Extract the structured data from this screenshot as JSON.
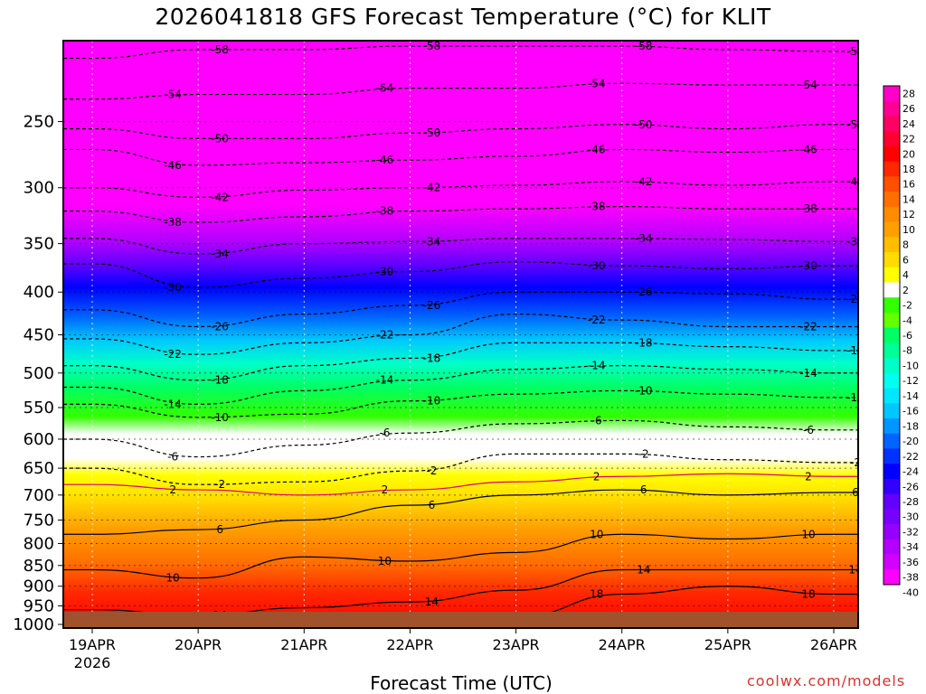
{
  "chart_data": {
    "type": "heatmap",
    "title": "2026041818 GFS Forecast Temperature (°C) for KLIT",
    "xlabel": "Forecast Time (UTC)",
    "x_ticks": [
      "19APR",
      "20APR",
      "21APR",
      "22APR",
      "23APR",
      "24APR",
      "25APR",
      "26APR"
    ],
    "x_tick_sublabel": "2026",
    "y_ticks": [
      250,
      300,
      350,
      400,
      450,
      500,
      550,
      600,
      650,
      700,
      750,
      800,
      850,
      900,
      950,
      1000
    ],
    "ylim": [
      1010,
      200
    ],
    "y_scale": "log pressure (hPa), inverted",
    "grid": "dotted",
    "colorbar": {
      "position": "right",
      "ticks": [
        28,
        26,
        24,
        22,
        20,
        18,
        16,
        14,
        12,
        10,
        8,
        6,
        4,
        2,
        -2,
        -4,
        -6,
        -8,
        -10,
        -12,
        -14,
        -16,
        -18,
        -20,
        -22,
        -24,
        -26,
        -28,
        -30,
        -32,
        -34,
        -36,
        -38,
        -40
      ],
      "colors": [
        "#ff00c8",
        "#ff0096",
        "#ff0064",
        "#ff0032",
        "#ff0000",
        "#ff2800",
        "#ff5000",
        "#ff6e00",
        "#ff8c00",
        "#ffa000",
        "#ffbe00",
        "#ffdc00",
        "#ffff00",
        "#ffffff",
        "#32ff00",
        "#64ff00",
        "#00ff64",
        "#00ff96",
        "#00ffc8",
        "#00fff0",
        "#00e6ff",
        "#00c8ff",
        "#0096ff",
        "#0064ff",
        "#0032ff",
        "#0000ff",
        "#3200ff",
        "#6400ff",
        "#7800ff",
        "#9600ff",
        "#b400ff",
        "#d200ff",
        "#ff00ff"
      ]
    },
    "series": [
      {
        "name": "-58",
        "pressure": [
          210,
          205,
          205,
          203,
          203,
          203,
          205,
          206
        ]
      },
      {
        "name": "-54",
        "pressure": [
          235,
          232,
          232,
          228,
          228,
          225,
          226,
          226
        ]
      },
      {
        "name": "-50",
        "pressure": [
          255,
          262,
          262,
          258,
          255,
          252,
          255,
          252
        ]
      },
      {
        "name": "-46",
        "pressure": [
          270,
          282,
          280,
          278,
          275,
          270,
          272,
          270
        ]
      },
      {
        "name": "-42",
        "pressure": [
          300,
          308,
          302,
          300,
          298,
          295,
          298,
          295
        ]
      },
      {
        "name": "-38",
        "pressure": [
          320,
          330,
          325,
          320,
          318,
          316,
          318,
          318
        ]
      },
      {
        "name": "-34",
        "pressure": [
          345,
          360,
          350,
          348,
          345,
          345,
          346,
          348
        ]
      },
      {
        "name": "-30",
        "pressure": [
          370,
          395,
          385,
          378,
          368,
          372,
          375,
          372
        ]
      },
      {
        "name": "-26",
        "pressure": [
          420,
          440,
          425,
          415,
          400,
          400,
          402,
          408
        ]
      },
      {
        "name": "-22",
        "pressure": [
          455,
          475,
          460,
          450,
          425,
          432,
          440,
          440
        ]
      },
      {
        "name": "-18",
        "pressure": [
          490,
          510,
          490,
          480,
          460,
          460,
          465,
          470
        ]
      },
      {
        "name": "-14",
        "pressure": [
          520,
          545,
          525,
          510,
          495,
          490,
          495,
          500
        ]
      },
      {
        "name": "-10",
        "pressure": [
          545,
          565,
          560,
          540,
          530,
          525,
          530,
          535
        ]
      },
      {
        "name": "-6",
        "pressure": [
          600,
          630,
          610,
          590,
          575,
          570,
          580,
          585
        ]
      },
      {
        "name": "-2",
        "pressure": [
          650,
          680,
          675,
          655,
          625,
          625,
          635,
          640
        ]
      },
      {
        "name": "2",
        "pressure": [
          680,
          690,
          700,
          690,
          675,
          665,
          660,
          665
        ]
      },
      {
        "name": "6",
        "pressure": [
          780,
          770,
          750,
          720,
          700,
          690,
          700,
          695
        ]
      },
      {
        "name": "10",
        "pressure": [
          860,
          880,
          830,
          840,
          820,
          780,
          790,
          780
        ]
      },
      {
        "name": "14",
        "pressure": [
          960,
          975,
          955,
          940,
          910,
          860,
          860,
          860
        ]
      },
      {
        "name": "18",
        "pressure": [
          1000,
          1000,
          1000,
          1000,
          980,
          920,
          900,
          920
        ]
      }
    ],
    "series_times": [
      "19APR",
      "20APR",
      "21APR",
      "22APR",
      "23APR",
      "24APR",
      "25APR",
      "26APR"
    ]
  },
  "footer": {
    "credit": "coolwx.com/models"
  }
}
